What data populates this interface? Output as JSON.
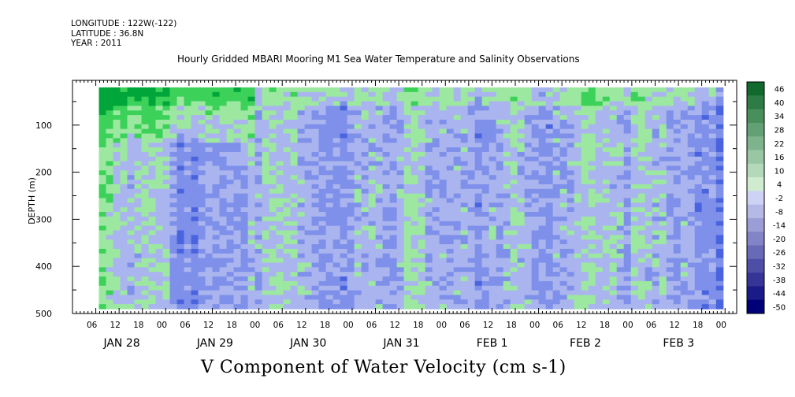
{
  "header": {
    "longitude": "LONGITUDE : 122W(-122)",
    "latitude": "LATITUDE : 36.8N",
    "year": "YEAR : 2011"
  },
  "chart_data": {
    "type": "heatmap",
    "title": "Hourly Gridded MBARI Mooring M1 Sea Water Temperature and Salinity Observations",
    "xlabel": "V Component of Water Velocity (cm s-1)",
    "ylabel": "DEPTH (m)",
    "x_hour_ticks": [
      "06",
      "12",
      "18",
      "00",
      "06",
      "12",
      "18",
      "00",
      "06",
      "12",
      "18",
      "00",
      "06",
      "12",
      "18",
      "00",
      "06",
      "12",
      "18",
      "00",
      "06",
      "12",
      "18",
      "00",
      "06",
      "12",
      "18",
      "00"
    ],
    "x_day_labels": [
      "JAN 28",
      "JAN 29",
      "JAN 30",
      "JAN 31",
      "FEB  1",
      "FEB  2",
      "FEB  3"
    ],
    "y_ticks": [
      100,
      200,
      300,
      400,
      500
    ],
    "y_tick_labels": [
      "100",
      "200",
      "300",
      "400",
      "500"
    ],
    "ylim": [
      500,
      20
    ],
    "colorbar_labels": [
      "46",
      "40",
      "34",
      "28",
      "22",
      "16",
      "10",
      "4",
      "-2",
      "-8",
      "-14",
      "-20",
      "-26",
      "-32",
      "-38",
      "-44",
      "-50"
    ],
    "colorbar_range": [
      -50,
      50
    ],
    "time_hours_range": [
      0,
      168
    ],
    "depth_range": [
      20,
      490
    ],
    "grid_shape": [
      88,
      48
    ],
    "seed": 20110128,
    "colors": {
      "strong_green": "#00a63a",
      "green": "#3cd25a",
      "light_green": "#9ce8a0",
      "light_blue": "#aab4ee",
      "blue": "#7e90ea",
      "dark_blue": "#4a64e0"
    }
  }
}
